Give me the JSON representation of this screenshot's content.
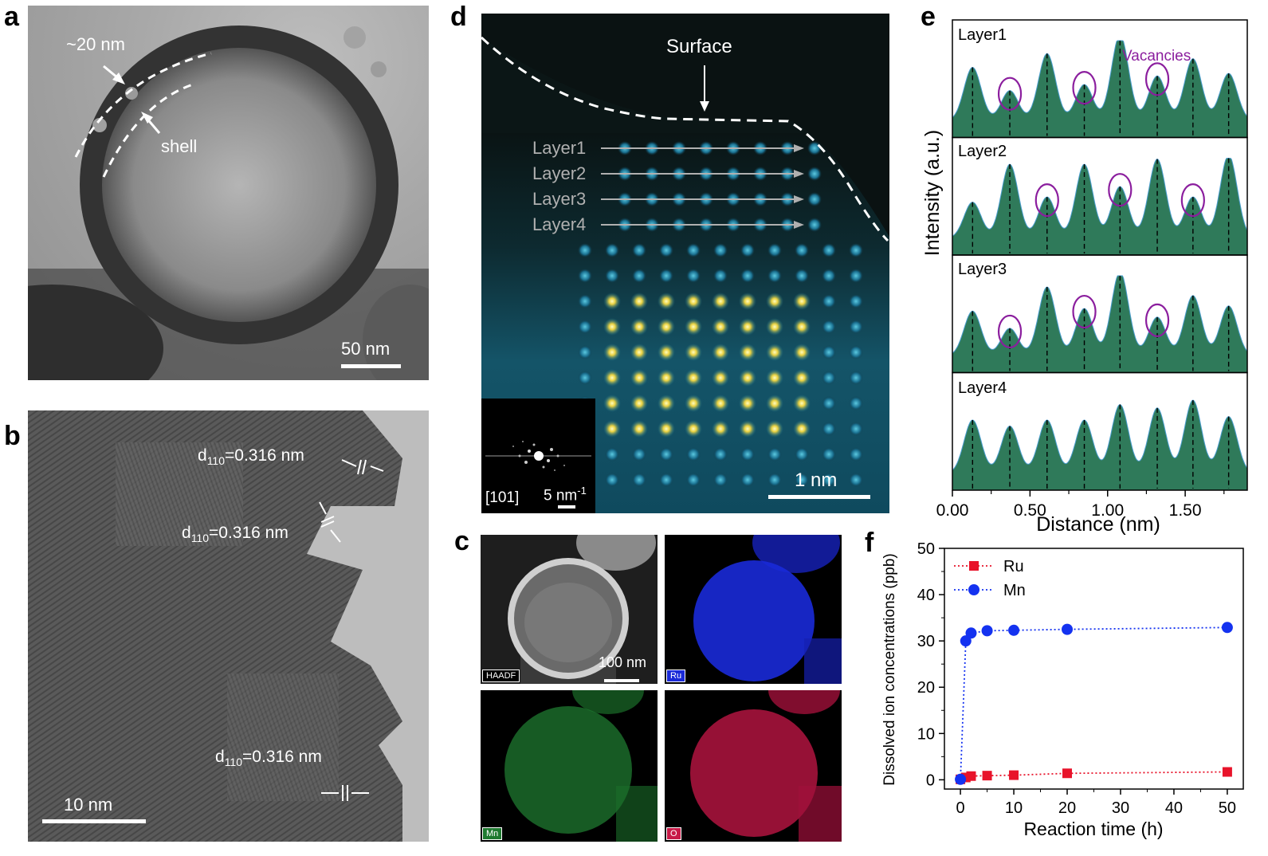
{
  "panels": {
    "a": {
      "letter": "a",
      "annot_thickness": "~20 nm",
      "annot_shell": "shell",
      "scalebar": "50 nm"
    },
    "b": {
      "letter": "b",
      "d1_main": "d",
      "d1_sub": "110",
      "d1_val": "=0.316  nm",
      "d2_main": "d",
      "d2_sub": "110",
      "d2_val": "=0.316 nm",
      "d3_main": "d",
      "d3_sub": "110",
      "d3_val": "=0.316 nm",
      "scalebar": "10 nm"
    },
    "c": {
      "letter": "c",
      "haadf_tag": "HAADF",
      "scalebar": "100 nm",
      "ru_tag": "Ru",
      "mn_tag": "Mn",
      "o_tag": "O"
    },
    "d": {
      "letter": "d",
      "surface": "Surface",
      "layer1": "Layer1",
      "layer2": "Layer2",
      "layer3": "Layer3",
      "layer4": "Layer4",
      "fft_zone": "[101]",
      "fft_scale": "5 nm",
      "fft_scale_sup": "-1",
      "scalebar": "1 nm"
    },
    "e": {
      "letter": "e",
      "vacancies": "Vacancies",
      "layer1": "Layer1",
      "layer2": "Layer2",
      "layer3": "Layer3",
      "layer4": "Layer4"
    },
    "f": {
      "letter": "f"
    }
  },
  "chart_data": [
    {
      "type": "area",
      "panel": "e",
      "xlabel": "Distance (nm)",
      "ylabel": "Intensity (a.u.)",
      "xlim": [
        0,
        1.9
      ],
      "xticks": [
        "0.00",
        "0.50",
        "1.00",
        "1.50"
      ],
      "xtick_values": [
        0,
        0.5,
        1.0,
        1.5
      ],
      "peak_positions": [
        0.13,
        0.37,
        0.61,
        0.85,
        1.08,
        1.32,
        1.55,
        1.78
      ],
      "series": [
        {
          "name": "Layer1",
          "peak_heights": [
            0.62,
            0.35,
            0.78,
            0.42,
            1.0,
            0.52,
            0.72,
            0.55
          ],
          "vacancies": [
            0.37,
            0.85,
            1.32
          ]
        },
        {
          "name": "Layer2",
          "peak_heights": [
            0.42,
            0.86,
            0.48,
            0.86,
            0.6,
            0.92,
            0.48,
            0.97
          ],
          "vacancies": [
            0.61,
            1.08,
            1.55
          ]
        },
        {
          "name": "Layer3",
          "peak_heights": [
            0.52,
            0.32,
            0.8,
            0.55,
            0.98,
            0.45,
            0.7,
            0.58
          ],
          "vacancies": [
            0.37,
            0.85,
            1.32
          ]
        },
        {
          "name": "Layer4",
          "peak_heights": [
            0.62,
            0.55,
            0.62,
            0.62,
            0.8,
            0.76,
            0.85,
            0.66
          ],
          "vacancies": []
        }
      ]
    },
    {
      "type": "scatter",
      "panel": "f",
      "xlabel": "Reaction time (h)",
      "ylabel": "Dissolved ion concentrations (ppb)",
      "xlim": [
        -3,
        53
      ],
      "ylim": [
        -2,
        50
      ],
      "xticks": [
        0,
        10,
        20,
        30,
        40,
        50
      ],
      "yticks": [
        0,
        10,
        20,
        30,
        40,
        50
      ],
      "legend_position": "top-left",
      "series": [
        {
          "name": "Ru",
          "color": "#e8132a",
          "marker": "square",
          "x": [
            0,
            1,
            2,
            5,
            10,
            20,
            50
          ],
          "y": [
            0.1,
            0.5,
            0.8,
            0.9,
            1.0,
            1.4,
            1.7
          ]
        },
        {
          "name": "Mn",
          "color": "#1432f0",
          "marker": "circle",
          "x": [
            0,
            1,
            2,
            5,
            10,
            20,
            50
          ],
          "y": [
            0.1,
            30.0,
            31.7,
            32.2,
            32.3,
            32.5,
            32.9
          ]
        }
      ]
    }
  ]
}
